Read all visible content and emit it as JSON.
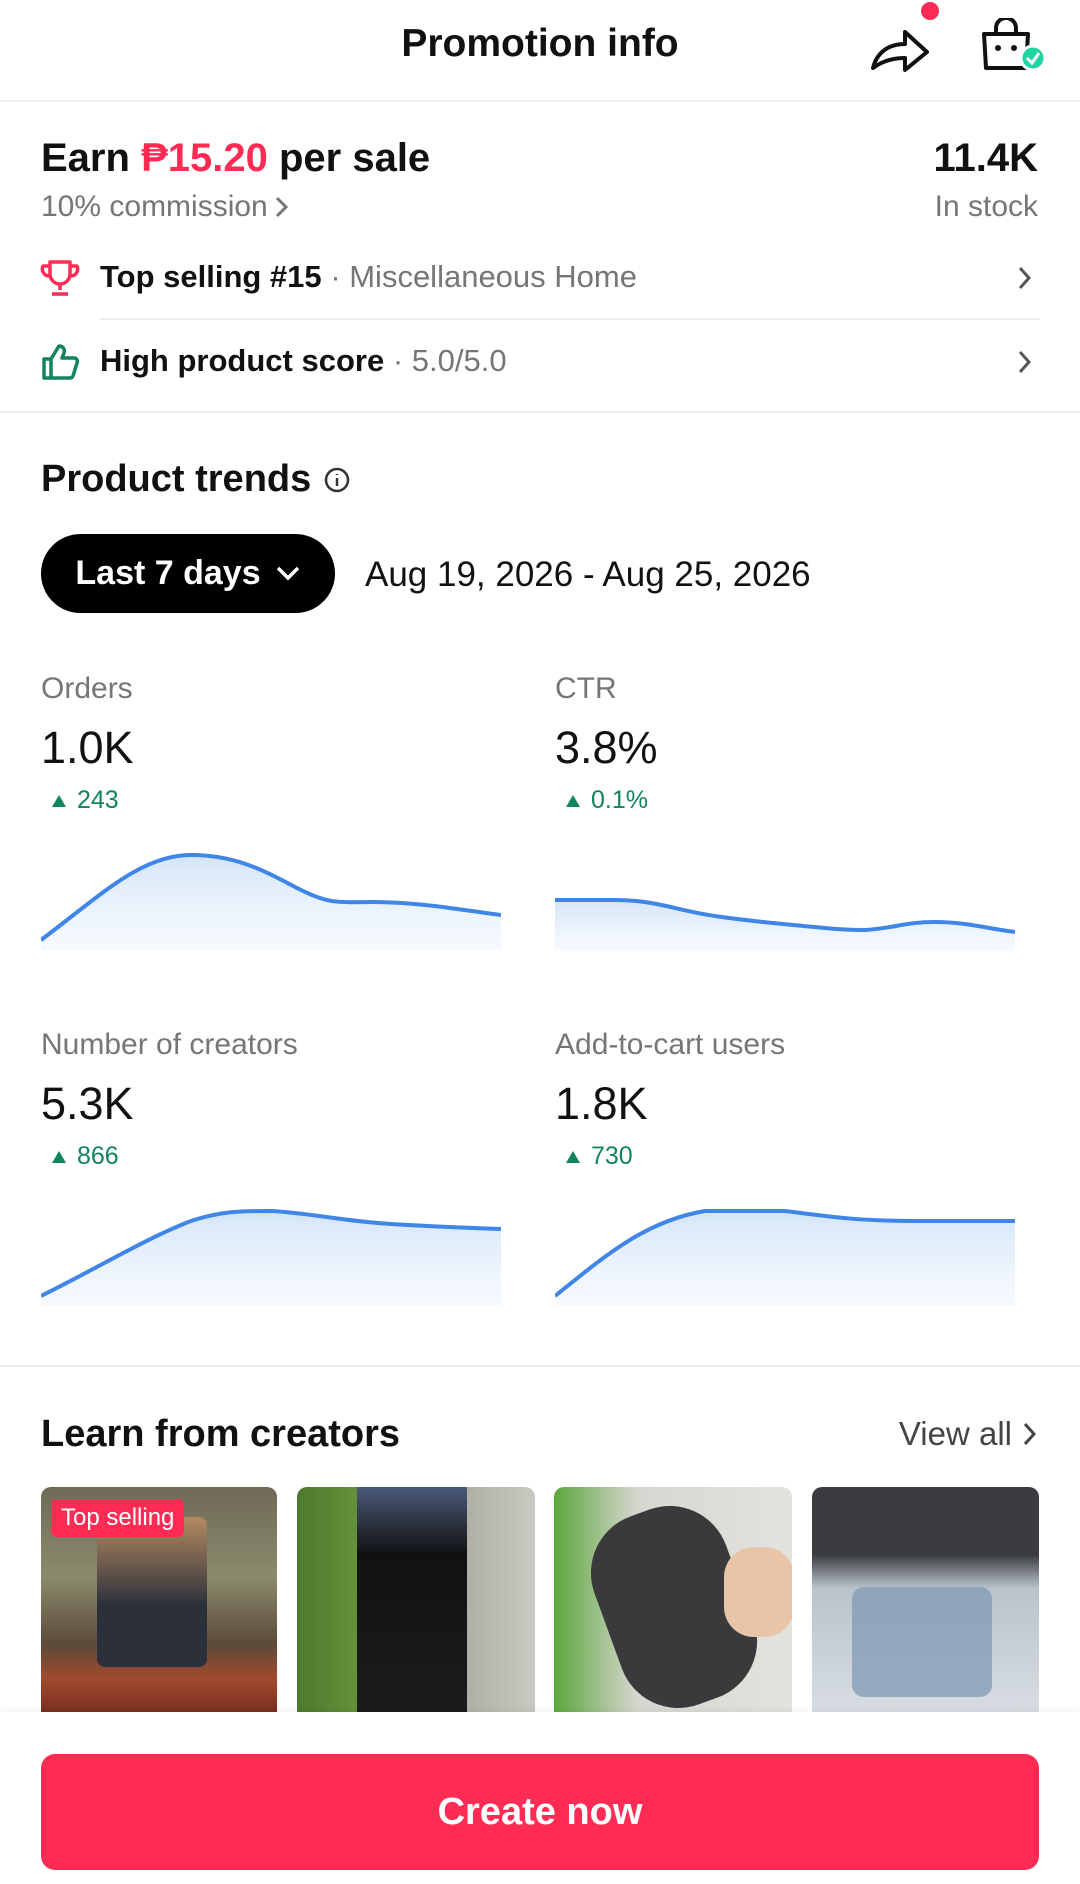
{
  "header": {
    "title": "Promotion info"
  },
  "earnings": {
    "earn_prefix": "Earn",
    "amount": "₱15.20",
    "earn_suffix": "per sale",
    "commission": "10% commission",
    "stock": "11.4K",
    "stock_label": "In stock"
  },
  "badges": [
    {
      "label": "Top selling #15",
      "detail": "Miscellaneous Home"
    },
    {
      "label": "High product score",
      "detail": "5.0/5.0"
    }
  ],
  "trends": {
    "title": "Product trends",
    "period": "Last 7 days",
    "date_range": "Aug 19, 2026 - Aug 25, 2026",
    "metrics": [
      {
        "name": "Orders",
        "value": "1.0K",
        "change": "243"
      },
      {
        "name": "CTR",
        "value": "3.8%",
        "change": "0.1%"
      },
      {
        "name": "Number of creators",
        "value": "5.3K",
        "change": "866"
      },
      {
        "name": "Add-to-cart users",
        "value": "1.8K",
        "change": "730"
      }
    ]
  },
  "creators": {
    "title": "Learn from creators",
    "view_all": "View all",
    "badge": "Top selling"
  },
  "cta": "Create now"
}
